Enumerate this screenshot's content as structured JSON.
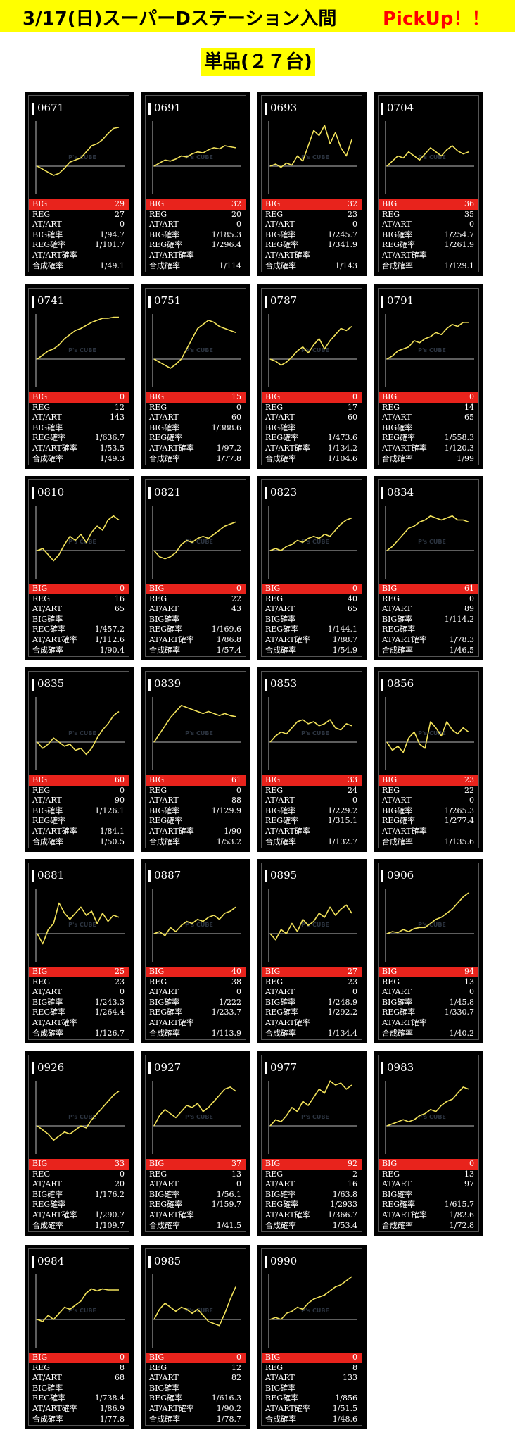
{
  "header": {
    "title": "3/17(日)スーパーDステーション入間",
    "pickup": "PickUp！！",
    "subtitle": "単品(２７台)"
  },
  "colors": {
    "banner": "#ffff00",
    "highlight": "#e8231c",
    "graph_line": "#f2e25a",
    "card_bg": "#000000"
  },
  "graph_watermark": "P's CUBE",
  "stat_labels": [
    "BIG",
    "REG",
    "AT/ART",
    "BIG確率",
    "REG確率",
    "AT/ART確率",
    "合成確率"
  ],
  "machines": [
    {
      "id": "0671",
      "stats": [
        "29",
        "27",
        "0",
        "1/94.7",
        "1/101.7",
        "",
        "1/49.1"
      ],
      "hl": 0,
      "series": [
        0,
        -3,
        -6,
        -9,
        -7,
        -2,
        4,
        6,
        8,
        14,
        20,
        22,
        26,
        32,
        37,
        38
      ]
    },
    {
      "id": "0691",
      "stats": [
        "32",
        "20",
        "0",
        "1/185.3",
        "1/296.4",
        "",
        "1/114"
      ],
      "hl": 0,
      "series": [
        0,
        3,
        6,
        5,
        7,
        10,
        9,
        12,
        14,
        13,
        16,
        18,
        17,
        20,
        19,
        18
      ]
    },
    {
      "id": "0693",
      "stats": [
        "32",
        "23",
        "0",
        "1/245.7",
        "1/341.9",
        "",
        "1/143"
      ],
      "hl": 0,
      "series": [
        0,
        2,
        -1,
        3,
        1,
        10,
        5,
        20,
        35,
        30,
        40,
        22,
        33,
        18,
        10,
        26
      ]
    },
    {
      "id": "0704",
      "stats": [
        "36",
        "35",
        "0",
        "1/254.7",
        "1/261.9",
        "",
        "1/129.1"
      ],
      "hl": 0,
      "series": [
        0,
        5,
        10,
        8,
        14,
        10,
        6,
        12,
        18,
        14,
        10,
        16,
        20,
        15,
        12,
        14
      ]
    },
    {
      "id": "0741",
      "stats": [
        "0",
        "12",
        "143",
        "",
        "1/636.7",
        "1/53.5",
        "1/49.3"
      ],
      "hl": 0,
      "series": [
        0,
        4,
        8,
        10,
        14,
        20,
        24,
        28,
        30,
        33,
        36,
        38,
        40,
        40,
        41,
        41
      ]
    },
    {
      "id": "0751",
      "stats": [
        "15",
        "0",
        "60",
        "1/388.6",
        "",
        "1/97.2",
        "1/77.8"
      ],
      "hl": 0,
      "series": [
        0,
        -3,
        -6,
        -9,
        -5,
        0,
        10,
        20,
        30,
        34,
        38,
        36,
        32,
        30,
        28,
        26
      ]
    },
    {
      "id": "0787",
      "stats": [
        "0",
        "17",
        "60",
        "",
        "1/473.6",
        "1/134.2",
        "1/104.6"
      ],
      "hl": 0,
      "series": [
        0,
        -2,
        -6,
        -3,
        2,
        8,
        12,
        6,
        14,
        20,
        10,
        18,
        24,
        30,
        28,
        32
      ]
    },
    {
      "id": "0791",
      "stats": [
        "0",
        "14",
        "65",
        "",
        "1/558.3",
        "1/120.3",
        "1/99"
      ],
      "hl": 0,
      "series": [
        0,
        3,
        8,
        10,
        12,
        18,
        16,
        20,
        22,
        26,
        24,
        30,
        34,
        32,
        36,
        36
      ]
    },
    {
      "id": "0810",
      "stats": [
        "0",
        "16",
        "65",
        "",
        "1/457.2",
        "1/112.6",
        "1/90.4"
      ],
      "hl": 0,
      "series": [
        0,
        2,
        -4,
        -10,
        -4,
        6,
        14,
        10,
        16,
        8,
        18,
        24,
        20,
        30,
        34,
        30
      ]
    },
    {
      "id": "0821",
      "stats": [
        "0",
        "22",
        "43",
        "",
        "1/169.6",
        "1/86.8",
        "1/57.4"
      ],
      "hl": 0,
      "series": [
        0,
        -6,
        -8,
        -6,
        -2,
        6,
        10,
        8,
        12,
        14,
        12,
        16,
        20,
        24,
        26,
        28
      ]
    },
    {
      "id": "0823",
      "stats": [
        "0",
        "40",
        "65",
        "",
        "1/144.1",
        "1/88.7",
        "1/54.9"
      ],
      "hl": 0,
      "series": [
        0,
        2,
        0,
        4,
        6,
        10,
        8,
        12,
        14,
        12,
        16,
        14,
        20,
        26,
        30,
        32
      ]
    },
    {
      "id": "0834",
      "stats": [
        "61",
        "0",
        "89",
        "1/114.2",
        "",
        "1/78.3",
        "1/46.5"
      ],
      "hl": 0,
      "series": [
        0,
        4,
        10,
        16,
        22,
        24,
        28,
        30,
        34,
        32,
        30,
        32,
        34,
        30,
        30,
        28
      ]
    },
    {
      "id": "0835",
      "stats": [
        "60",
        "0",
        "90",
        "1/126.1",
        "",
        "1/84.1",
        "1/50.5"
      ],
      "hl": 0,
      "series": [
        0,
        -6,
        -2,
        4,
        0,
        -4,
        -2,
        -8,
        -6,
        -12,
        -6,
        4,
        12,
        18,
        26,
        30
      ]
    },
    {
      "id": "0839",
      "stats": [
        "61",
        "0",
        "88",
        "1/129.9",
        "",
        "1/90",
        "1/53.2"
      ],
      "hl": 0,
      "series": [
        0,
        8,
        16,
        24,
        30,
        36,
        34,
        32,
        30,
        28,
        30,
        28,
        26,
        28,
        26,
        25
      ]
    },
    {
      "id": "0853",
      "stats": [
        "33",
        "24",
        "0",
        "1/229.2",
        "1/315.1",
        "",
        "1/132.7"
      ],
      "hl": 0,
      "series": [
        0,
        6,
        10,
        8,
        14,
        20,
        22,
        18,
        20,
        16,
        18,
        22,
        14,
        12,
        18,
        16
      ]
    },
    {
      "id": "0856",
      "stats": [
        "23",
        "22",
        "0",
        "1/265.3",
        "1/277.4",
        "",
        "1/135.6"
      ],
      "hl": 0,
      "series": [
        0,
        -8,
        -4,
        -10,
        4,
        10,
        -2,
        -6,
        20,
        14,
        6,
        20,
        12,
        8,
        14,
        10
      ]
    },
    {
      "id": "0881",
      "stats": [
        "25",
        "23",
        "0",
        "1/243.3",
        "1/264.4",
        "",
        "1/126.7"
      ],
      "hl": 0,
      "series": [
        0,
        -10,
        4,
        10,
        30,
        20,
        14,
        20,
        26,
        18,
        22,
        10,
        20,
        12,
        18,
        16
      ]
    },
    {
      "id": "0887",
      "stats": [
        "40",
        "38",
        "0",
        "1/222",
        "1/233.7",
        "",
        "1/113.9"
      ],
      "hl": 0,
      "series": [
        0,
        2,
        -2,
        6,
        2,
        8,
        12,
        10,
        14,
        12,
        16,
        18,
        14,
        20,
        22,
        26
      ]
    },
    {
      "id": "0895",
      "stats": [
        "27",
        "23",
        "0",
        "1/248.9",
        "1/292.2",
        "",
        "1/134.4"
      ],
      "hl": 0,
      "series": [
        0,
        -6,
        4,
        0,
        10,
        2,
        14,
        8,
        12,
        20,
        16,
        26,
        18,
        24,
        28,
        20
      ]
    },
    {
      "id": "0906",
      "stats": [
        "94",
        "13",
        "0",
        "1/45.8",
        "1/330.7",
        "",
        "1/40.2"
      ],
      "hl": 0,
      "series": [
        0,
        2,
        1,
        4,
        2,
        5,
        6,
        6,
        10,
        14,
        16,
        20,
        24,
        30,
        36,
        40
      ]
    },
    {
      "id": "0926",
      "stats": [
        "33",
        "0",
        "20",
        "1/176.2",
        "",
        "1/290.7",
        "1/109.7"
      ],
      "hl": 0,
      "series": [
        0,
        -4,
        -8,
        -14,
        -10,
        -6,
        -8,
        -4,
        0,
        -2,
        6,
        12,
        18,
        24,
        30,
        34
      ]
    },
    {
      "id": "0927",
      "stats": [
        "37",
        "13",
        "0",
        "1/56.1",
        "1/159.7",
        "",
        "1/41.5"
      ],
      "hl": 0,
      "series": [
        0,
        10,
        16,
        12,
        8,
        14,
        20,
        18,
        22,
        14,
        18,
        24,
        30,
        36,
        38,
        34
      ]
    },
    {
      "id": "0977",
      "stats": [
        "92",
        "2",
        "16",
        "1/63.8",
        "1/2933",
        "1/366.7",
        "1/53.4"
      ],
      "hl": 0,
      "series": [
        0,
        6,
        4,
        10,
        18,
        14,
        24,
        20,
        28,
        36,
        32,
        44,
        40,
        42,
        36,
        40
      ]
    },
    {
      "id": "0983",
      "stats": [
        "0",
        "13",
        "97",
        "",
        "1/615.7",
        "1/82.6",
        "1/72.8"
      ],
      "hl": 0,
      "series": [
        0,
        2,
        4,
        6,
        4,
        6,
        10,
        12,
        16,
        14,
        20,
        24,
        26,
        32,
        38,
        36
      ]
    },
    {
      "id": "0984",
      "stats": [
        "0",
        "8",
        "68",
        "",
        "1/738.4",
        "1/86.9",
        "1/77.8"
      ],
      "hl": 0,
      "series": [
        0,
        -2,
        4,
        0,
        6,
        12,
        10,
        14,
        18,
        26,
        30,
        28,
        30,
        29,
        29,
        29
      ]
    },
    {
      "id": "0985",
      "stats": [
        "0",
        "12",
        "82",
        "",
        "1/616.3",
        "1/90.2",
        "1/78.7"
      ],
      "hl": 0,
      "series": [
        0,
        10,
        16,
        12,
        8,
        12,
        10,
        6,
        10,
        4,
        -2,
        -4,
        -6,
        6,
        20,
        32
      ]
    },
    {
      "id": "0990",
      "stats": [
        "0",
        "8",
        "133",
        "",
        "1/856",
        "1/51.5",
        "1/48.6"
      ],
      "hl": 0,
      "series": [
        0,
        2,
        0,
        6,
        8,
        12,
        10,
        16,
        20,
        22,
        24,
        28,
        32,
        34,
        38,
        42
      ]
    }
  ]
}
